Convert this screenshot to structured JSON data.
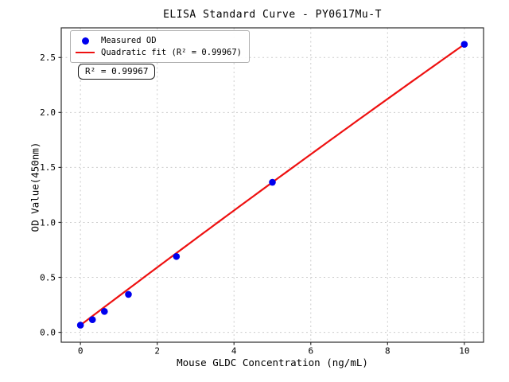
{
  "window": {
    "background": "#ffffff"
  },
  "chart_data": {
    "type": "scatter",
    "title": "ELISA Standard Curve - PY0617Mu-T",
    "xlabel": "Mouse GLDC Concentration (ng/mL)",
    "ylabel": "OD Value(450nm)",
    "xlim": [
      -0.5,
      10.5
    ],
    "ylim": [
      -0.09,
      2.77
    ],
    "xticks": [
      0,
      2,
      4,
      6,
      8,
      10
    ],
    "xtick_labels": [
      "0",
      "2",
      "4",
      "6",
      "8",
      "10"
    ],
    "yticks": [
      0,
      0.5,
      1,
      1.5,
      2,
      2.5
    ],
    "ytick_labels": [
      "0.0",
      "0.5",
      "1.0",
      "1.5",
      "2.0",
      "2.5"
    ],
    "grid": true,
    "legend_position": "upper left",
    "series": [
      {
        "name": "Measured OD",
        "type": "scatter",
        "marker": "circle",
        "color": "#0000ee",
        "x": [
          0,
          0.3125,
          0.625,
          1.25,
          2.5,
          5,
          10
        ],
        "y": [
          0.065,
          0.115,
          0.19,
          0.345,
          0.69,
          1.365,
          2.62
        ]
      },
      {
        "name": "Quadratic fit (R² = 0.99967)",
        "type": "line",
        "color": "#ee1111",
        "fit": {
          "kind": "quadratic",
          "c0": 0.065,
          "c1": 0.2645,
          "c2": -0.0009,
          "r_squared": 0.99967
        },
        "x_range": [
          0,
          10
        ]
      }
    ],
    "annotation": {
      "text": "R² = 0.99967"
    },
    "colors": {
      "grid": "#cccccc",
      "spine": "#2b2b2b",
      "tick_text": "#000000"
    }
  }
}
